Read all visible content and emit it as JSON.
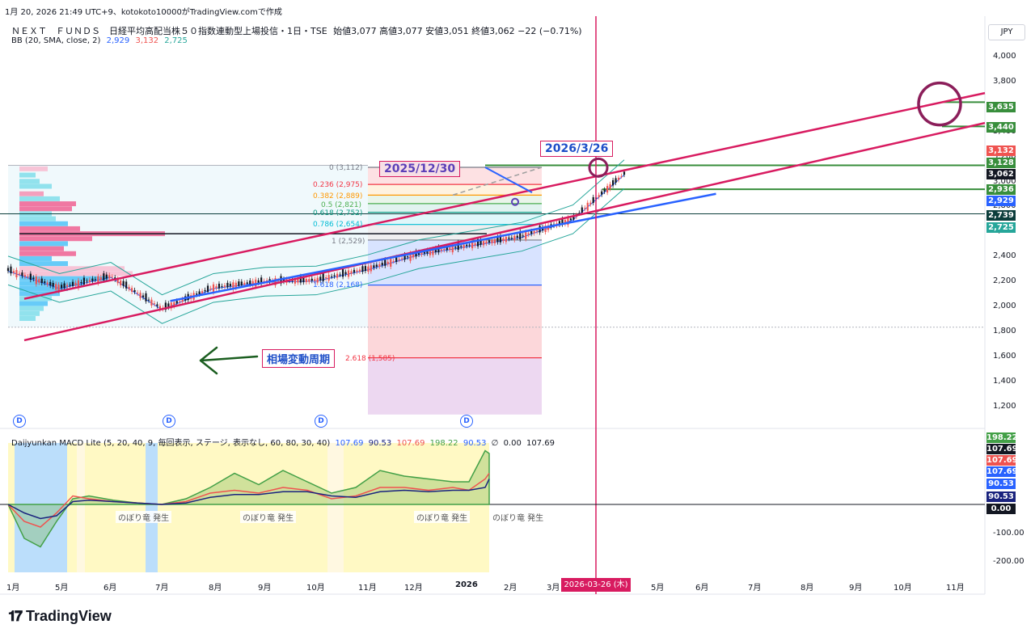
{
  "header": {
    "timestamp": "1月 20, 2026 21:49 UTC+9、kotokoto10000がTradingView.comで作成",
    "symbol_line": "ＮＥＸＴ　ＦＵＮＤＳ　日経平均高配当株５０指数連動型上場投信・1日・TSE",
    "ohlc": "始値3,077  高値3,077  安値3,051  終値3,062  −22 (−0.71%)",
    "bb_label": "BB (20, SMA, close, 2)",
    "bb_values": [
      "2,929",
      "3,132",
      "2,725"
    ],
    "currency": "JPY"
  },
  "macd_legend": {
    "label": "Daijyunkan MACD Lite (5, 20, 40, 9, 毎回表示, ステージ, 表示なし, 60, 80, 30, 40)",
    "values": [
      "107.69",
      "90.53",
      "107.69",
      "198.22",
      "90.53",
      "∅",
      "0.00",
      "107.69"
    ]
  },
  "annotations": {
    "date_box_1": "2026/3/26",
    "date_box_2": "2025/12/30",
    "cycle_label": "相場変動周期",
    "signals": [
      "のぼり竜 発生",
      "のぼり竜 発生",
      "のぼり竜 発生",
      "のぼり竜 発生"
    ],
    "crosshair_date": "2026-03-26 (木)",
    "fib_labels": [
      "0 (3,112)",
      "0.236 (2,975)",
      "0.382 (2,889)",
      "0.5 (2,821)",
      "0.618 (2,752)",
      "0.786 (2,654)",
      "1 (2,529)",
      "1.618 (2,168)",
      "2.618 (1,585)"
    ]
  },
  "price_axis": [
    "4,000",
    "3,800",
    "3,600",
    "3,400",
    "3,200",
    "3,000",
    "2,800",
    "2,600",
    "2,400",
    "2,200",
    "2,000",
    "1,800",
    "1,600",
    "1,400",
    "1,200"
  ],
  "price_tags": [
    {
      "label": "3,635",
      "color": "#388e3c"
    },
    {
      "label": "3,440",
      "color": "#388e3c"
    },
    {
      "label": "3,132",
      "color": "#ef5350"
    },
    {
      "label": "3,128",
      "color": "#388e3c"
    },
    {
      "label": "3,062",
      "color": "#131722"
    },
    {
      "label": "2,936",
      "color": "#388e3c"
    },
    {
      "label": "2,929",
      "color": "#2962ff"
    },
    {
      "label": "2,739",
      "color": "#0b3d3b"
    },
    {
      "label": "2,725",
      "color": "#26a69a"
    }
  ],
  "macd_axis": [
    "-100.00",
    "-200.00"
  ],
  "macd_tags": [
    {
      "label": "198.22",
      "color": "#43a047"
    },
    {
      "label": "107.69",
      "color": "#131722"
    },
    {
      "label": "107.69",
      "color": "#ef5350"
    },
    {
      "label": "107.69",
      "color": "#2962ff"
    },
    {
      "label": "90.53",
      "color": "#2962ff"
    },
    {
      "label": "90.53",
      "color": "#1a237e"
    },
    {
      "label": "0.00",
      "color": "#131722"
    }
  ],
  "time_axis": [
    "1月",
    "5月",
    "6月",
    "7月",
    "8月",
    "9月",
    "10月",
    "11月",
    "12月",
    "2026",
    "2月",
    "3月",
    "5月",
    "6月",
    "7月",
    "8月",
    "9月",
    "10月",
    "11月"
  ],
  "dividend_marker": "D",
  "brand": "TradingView",
  "chart_data": {
    "type": "line",
    "description_series": "approximate daily close path",
    "x": [
      "2025-01",
      "2025-02",
      "2025-03",
      "2025-04",
      "2025-05",
      "2025-06",
      "2025-07",
      "2025-08",
      "2025-09",
      "2025-10",
      "2025-11",
      "2025-12",
      "2026-01"
    ],
    "series": [
      {
        "values": [
          2290,
          2150,
          2240,
          1980,
          2150,
          2200,
          2210,
          2300,
          2420,
          2490,
          2560,
          2700,
          3062
        ]
      }
    ],
    "ylim": [
      1100,
      4100
    ],
    "channel_upper": {
      "from": [
        "2025-01",
        2220
      ],
      "to": [
        "2026-11",
        3740
      ]
    },
    "channel_lower": {
      "from": [
        "2025-01",
        1920
      ],
      "to": [
        "2026-11",
        3500
      ]
    },
    "trend_blue": {
      "from": [
        "2025-04",
        2040
      ],
      "to": [
        "2026-02",
        2900
      ]
    },
    "horizontal_levels": [
      3128,
      2936,
      2739,
      2529
    ],
    "fibonacci": {
      "anchor_high": 3112,
      "levels": [
        0,
        0.236,
        0.382,
        0.5,
        0.618,
        0.786,
        1,
        1.618,
        2.618
      ],
      "prices": [
        3112,
        2975,
        2889,
        2821,
        2752,
        2654,
        2529,
        2168,
        1585
      ]
    },
    "bollinger": {
      "mid": 2929,
      "upper": 3132,
      "lower": 2725
    },
    "macd": {
      "ylim": [
        -250,
        250
      ],
      "macd_last": 107.69,
      "signal_last": 90.53,
      "histogram_last": 198.22
    }
  }
}
